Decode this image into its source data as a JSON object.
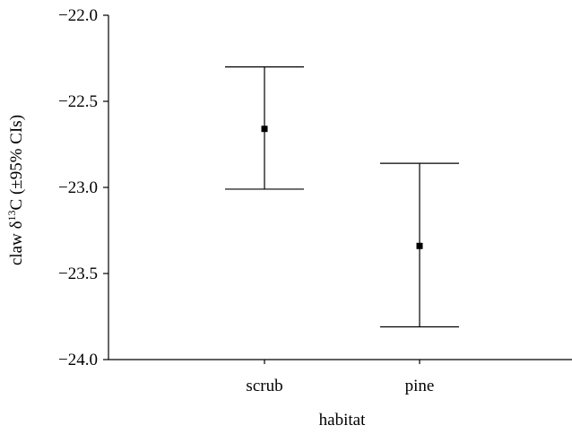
{
  "chart_data": {
    "type": "errorbar",
    "categories": [
      "scrub",
      "pine"
    ],
    "series": [
      {
        "values": [
          -22.66,
          -23.34
        ],
        "ci_lower": [
          -23.01,
          -23.81
        ],
        "ci_upper": [
          -22.3,
          -22.86
        ]
      }
    ],
    "xlabel": "habitat",
    "ylabel_parts": [
      "claw δ",
      "13",
      "C (±95% CIs)"
    ],
    "ylim": [
      -24.0,
      -22.0
    ],
    "yticks": [
      -22.0,
      -22.5,
      -23.0,
      -23.5,
      -24.0
    ],
    "ytick_labels": [
      "−22.0",
      "−22.5",
      "−23.0",
      "−23.5",
      "−24.0"
    ],
    "grid": false
  }
}
